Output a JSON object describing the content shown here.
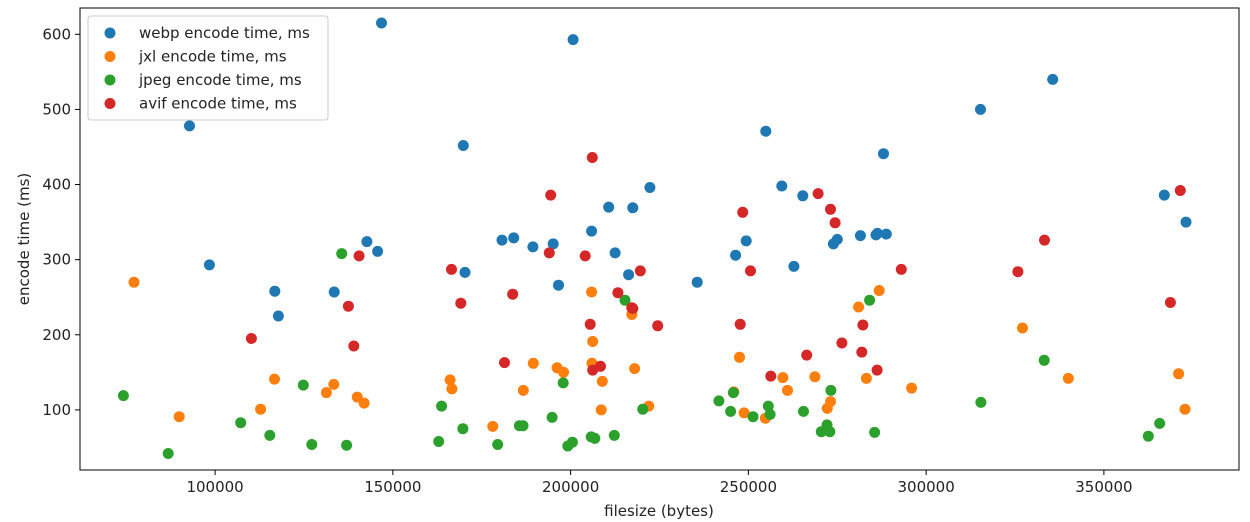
{
  "chart_data": {
    "type": "scatter",
    "title": "",
    "xlabel": "filesize (bytes)",
    "ylabel": "encode time (ms)",
    "xlim": [
      62000,
      388000
    ],
    "ylim": [
      20,
      635
    ],
    "xticks": [
      100000,
      150000,
      200000,
      250000,
      300000,
      350000
    ],
    "yticks": [
      100,
      200,
      300,
      400,
      500,
      600
    ],
    "grid": false,
    "legend_position": "top-left",
    "series": [
      {
        "name": "webp encode time, ms",
        "color": "#1f77b4",
        "points": [
          [
            92800,
            478
          ],
          [
            98400,
            293
          ],
          [
            116800,
            258
          ],
          [
            117800,
            225
          ],
          [
            133500,
            257
          ],
          [
            142700,
            324
          ],
          [
            145700,
            311
          ],
          [
            146800,
            615
          ],
          [
            169800,
            452
          ],
          [
            170300,
            283
          ],
          [
            180700,
            326
          ],
          [
            184000,
            329
          ],
          [
            189400,
            317
          ],
          [
            195100,
            321
          ],
          [
            196600,
            266
          ],
          [
            200700,
            593
          ],
          [
            205900,
            338
          ],
          [
            210700,
            370
          ],
          [
            212500,
            309
          ],
          [
            216300,
            280
          ],
          [
            217500,
            369
          ],
          [
            222300,
            396
          ],
          [
            235600,
            270
          ],
          [
            246400,
            306
          ],
          [
            249400,
            325
          ],
          [
            254900,
            471
          ],
          [
            259400,
            398
          ],
          [
            262800,
            291
          ],
          [
            265300,
            385
          ],
          [
            273900,
            321
          ],
          [
            275000,
            327
          ],
          [
            281500,
            332
          ],
          [
            285900,
            333
          ],
          [
            286300,
            335
          ],
          [
            288000,
            441
          ],
          [
            288800,
            334
          ],
          [
            315300,
            500
          ],
          [
            335600,
            540
          ],
          [
            367000,
            386
          ],
          [
            373100,
            350
          ]
        ]
      },
      {
        "name": "jxl encode time, ms",
        "color": "#ff7f0e",
        "points": [
          [
            77200,
            270
          ],
          [
            89900,
            91
          ],
          [
            112800,
            101
          ],
          [
            116700,
            141
          ],
          [
            131300,
            123
          ],
          [
            133400,
            134
          ],
          [
            140000,
            117
          ],
          [
            141900,
            109
          ],
          [
            166100,
            140
          ],
          [
            166600,
            128
          ],
          [
            178100,
            78
          ],
          [
            186700,
            126
          ],
          [
            189500,
            162
          ],
          [
            196200,
            156
          ],
          [
            198000,
            150
          ],
          [
            205900,
            257
          ],
          [
            206000,
            162
          ],
          [
            206200,
            191
          ],
          [
            208600,
            100
          ],
          [
            208900,
            138
          ],
          [
            217200,
            227
          ],
          [
            218000,
            155
          ],
          [
            222000,
            105
          ],
          [
            245900,
            124
          ],
          [
            247500,
            170
          ],
          [
            248800,
            96
          ],
          [
            254800,
            89
          ],
          [
            259700,
            143
          ],
          [
            261000,
            126
          ],
          [
            268700,
            144
          ],
          [
            272200,
            102
          ],
          [
            273100,
            111
          ],
          [
            281000,
            237
          ],
          [
            283200,
            142
          ],
          [
            286800,
            259
          ],
          [
            295900,
            129
          ],
          [
            327100,
            209
          ],
          [
            340000,
            142
          ],
          [
            371000,
            148
          ],
          [
            372800,
            101
          ]
        ]
      },
      {
        "name": "jpeg encode time, ms",
        "color": "#2ca02c",
        "points": [
          [
            74200,
            119
          ],
          [
            86800,
            42
          ],
          [
            107200,
            83
          ],
          [
            115400,
            66
          ],
          [
            124800,
            133
          ],
          [
            127200,
            54
          ],
          [
            135600,
            308
          ],
          [
            137000,
            53
          ],
          [
            162900,
            58
          ],
          [
            163700,
            105
          ],
          [
            169700,
            75
          ],
          [
            179500,
            54
          ],
          [
            185600,
            79
          ],
          [
            186600,
            79
          ],
          [
            194800,
            90
          ],
          [
            197900,
            136
          ],
          [
            199200,
            52
          ],
          [
            200500,
            57
          ],
          [
            205800,
            64
          ],
          [
            206800,
            62
          ],
          [
            212300,
            66
          ],
          [
            215300,
            246
          ],
          [
            220300,
            101
          ],
          [
            241700,
            112
          ],
          [
            245000,
            98
          ],
          [
            245800,
            123
          ],
          [
            251300,
            91
          ],
          [
            255600,
            105
          ],
          [
            256100,
            94
          ],
          [
            265500,
            98
          ],
          [
            270500,
            71
          ],
          [
            272100,
            80
          ],
          [
            272900,
            71
          ],
          [
            273200,
            126
          ],
          [
            284100,
            246
          ],
          [
            285500,
            70
          ],
          [
            315400,
            110
          ],
          [
            333200,
            166
          ],
          [
            362500,
            65
          ],
          [
            365700,
            82
          ]
        ]
      },
      {
        "name": "avif encode time, ms",
        "color": "#d62728",
        "points": [
          [
            110200,
            195
          ],
          [
            137500,
            238
          ],
          [
            139000,
            185
          ],
          [
            140500,
            305
          ],
          [
            166500,
            287
          ],
          [
            169100,
            242
          ],
          [
            181400,
            163
          ],
          [
            183700,
            254
          ],
          [
            194000,
            309
          ],
          [
            194400,
            386
          ],
          [
            204100,
            305
          ],
          [
            205500,
            214
          ],
          [
            206100,
            436
          ],
          [
            206200,
            153
          ],
          [
            208400,
            158
          ],
          [
            213300,
            256
          ],
          [
            217200,
            236
          ],
          [
            217500,
            235
          ],
          [
            219600,
            285
          ],
          [
            224500,
            212
          ],
          [
            247700,
            214
          ],
          [
            248400,
            363
          ],
          [
            250600,
            285
          ],
          [
            256300,
            145
          ],
          [
            266400,
            173
          ],
          [
            269600,
            388
          ],
          [
            273100,
            367
          ],
          [
            274400,
            349
          ],
          [
            276300,
            189
          ],
          [
            281900,
            177
          ],
          [
            282200,
            213
          ],
          [
            286200,
            153
          ],
          [
            293000,
            287
          ],
          [
            325800,
            284
          ],
          [
            333300,
            326
          ],
          [
            368700,
            243
          ],
          [
            371500,
            392
          ]
        ]
      }
    ]
  }
}
